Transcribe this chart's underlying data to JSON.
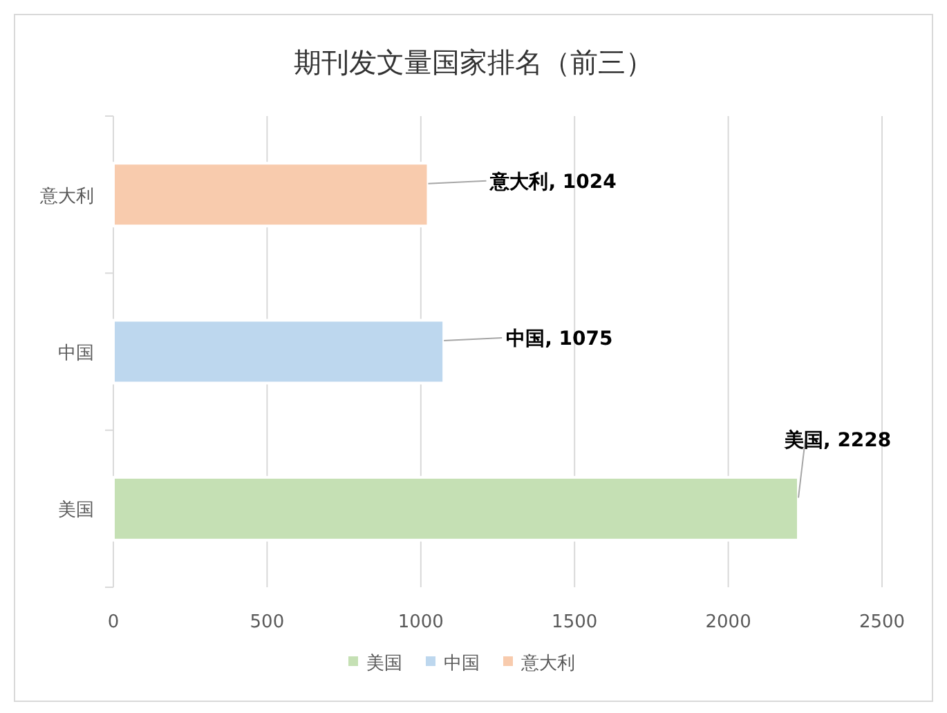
{
  "chart_data": {
    "type": "bar",
    "orientation": "horizontal",
    "title": "期刊发文量国家排名（前三）",
    "categories": [
      "意大利",
      "中国",
      "美国"
    ],
    "series": [
      {
        "name": "美国",
        "color": "#c5e0b4",
        "values": [
          null,
          null,
          2228
        ],
        "value_labels": [
          null,
          null,
          "美国, 2228"
        ]
      },
      {
        "name": "中国",
        "color": "#bdd7ee",
        "values": [
          null,
          1075,
          null
        ],
        "value_labels": [
          null,
          "中国, 1075",
          null
        ]
      },
      {
        "name": "意大利",
        "color": "#f8cbad",
        "values": [
          1024,
          null,
          null
        ],
        "value_labels": [
          "意大利, 1024",
          null,
          null
        ]
      }
    ],
    "xlim": [
      0,
      2500
    ],
    "xticks": [
      0,
      500,
      1000,
      1500,
      2000,
      2500
    ],
    "grid": "x",
    "legend": "bottom"
  }
}
